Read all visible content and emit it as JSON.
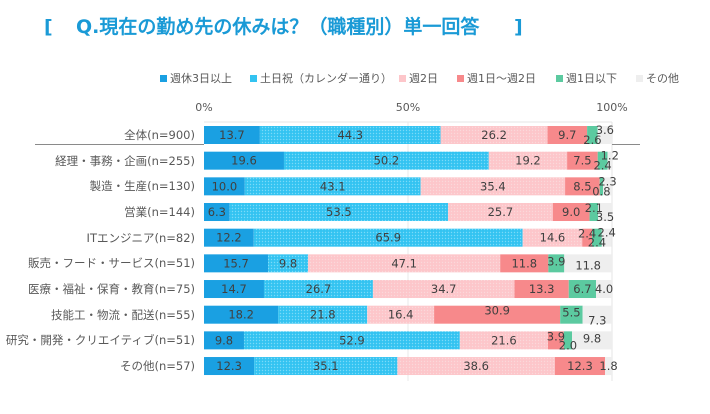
{
  "title": {
    "open": "[",
    "text": "Q.現在の勤め先の休みは？（職種別）単一回答",
    "close": "]"
  },
  "chart_data": {
    "type": "bar",
    "orientation": "horizontal",
    "stacked": true,
    "title": "Q.現在の勤め先の休みは？（職種別）単一回答",
    "xlabel": "",
    "ylabel": "",
    "xlim": [
      0,
      100
    ],
    "xticks": [
      "0%",
      "50%",
      "100%"
    ],
    "legend_position": "top",
    "grid": true,
    "categories": [
      "全体(n=900)",
      "経理・事務・企画(n=255)",
      "製造・生産(n=130)",
      "営業(n=144)",
      "ITエンジニア(n=82)",
      "販売・フード・サービス(n=51)",
      "医療・福祉・保育・教育(n=75)",
      "技能工・物流・配送(n=55)",
      "研究・開発・クリエイティブ(n=51)",
      "その他(n=57)"
    ],
    "series": [
      {
        "name": "週休3日以上",
        "color": "#1aa0e2",
        "pattern": "solid",
        "values": [
          13.7,
          19.6,
          10.0,
          6.3,
          12.2,
          15.7,
          14.7,
          18.2,
          9.8,
          12.3
        ]
      },
      {
        "name": "土日祝（カレンダー通り）",
        "color": "#33c3f1",
        "pattern": "dots",
        "values": [
          44.3,
          50.2,
          43.1,
          53.5,
          65.9,
          9.8,
          26.7,
          21.8,
          52.9,
          35.1
        ]
      },
      {
        "name": "週2日",
        "color": "#fdc6ca",
        "pattern": "dots",
        "values": [
          26.2,
          19.2,
          35.4,
          25.7,
          14.6,
          47.1,
          34.7,
          16.4,
          21.6,
          38.6
        ]
      },
      {
        "name": "週1日～週2日",
        "color": "#f7898b",
        "pattern": "solid",
        "values": [
          9.7,
          7.5,
          8.5,
          9.0,
          2.4,
          11.8,
          13.3,
          30.9,
          3.9,
          12.3
        ]
      },
      {
        "name": "週1日以下",
        "color": "#5ccaa0",
        "pattern": "solid",
        "values": [
          2.6,
          2.4,
          0.8,
          2.1,
          2.4,
          3.9,
          6.7,
          5.5,
          2.0,
          0.0
        ]
      },
      {
        "name": "その他",
        "color": "#eeeeee",
        "pattern": "solid",
        "values": [
          3.6,
          1.2,
          2.3,
          3.5,
          2.4,
          11.8,
          4.0,
          7.3,
          9.8,
          1.8
        ]
      }
    ]
  }
}
